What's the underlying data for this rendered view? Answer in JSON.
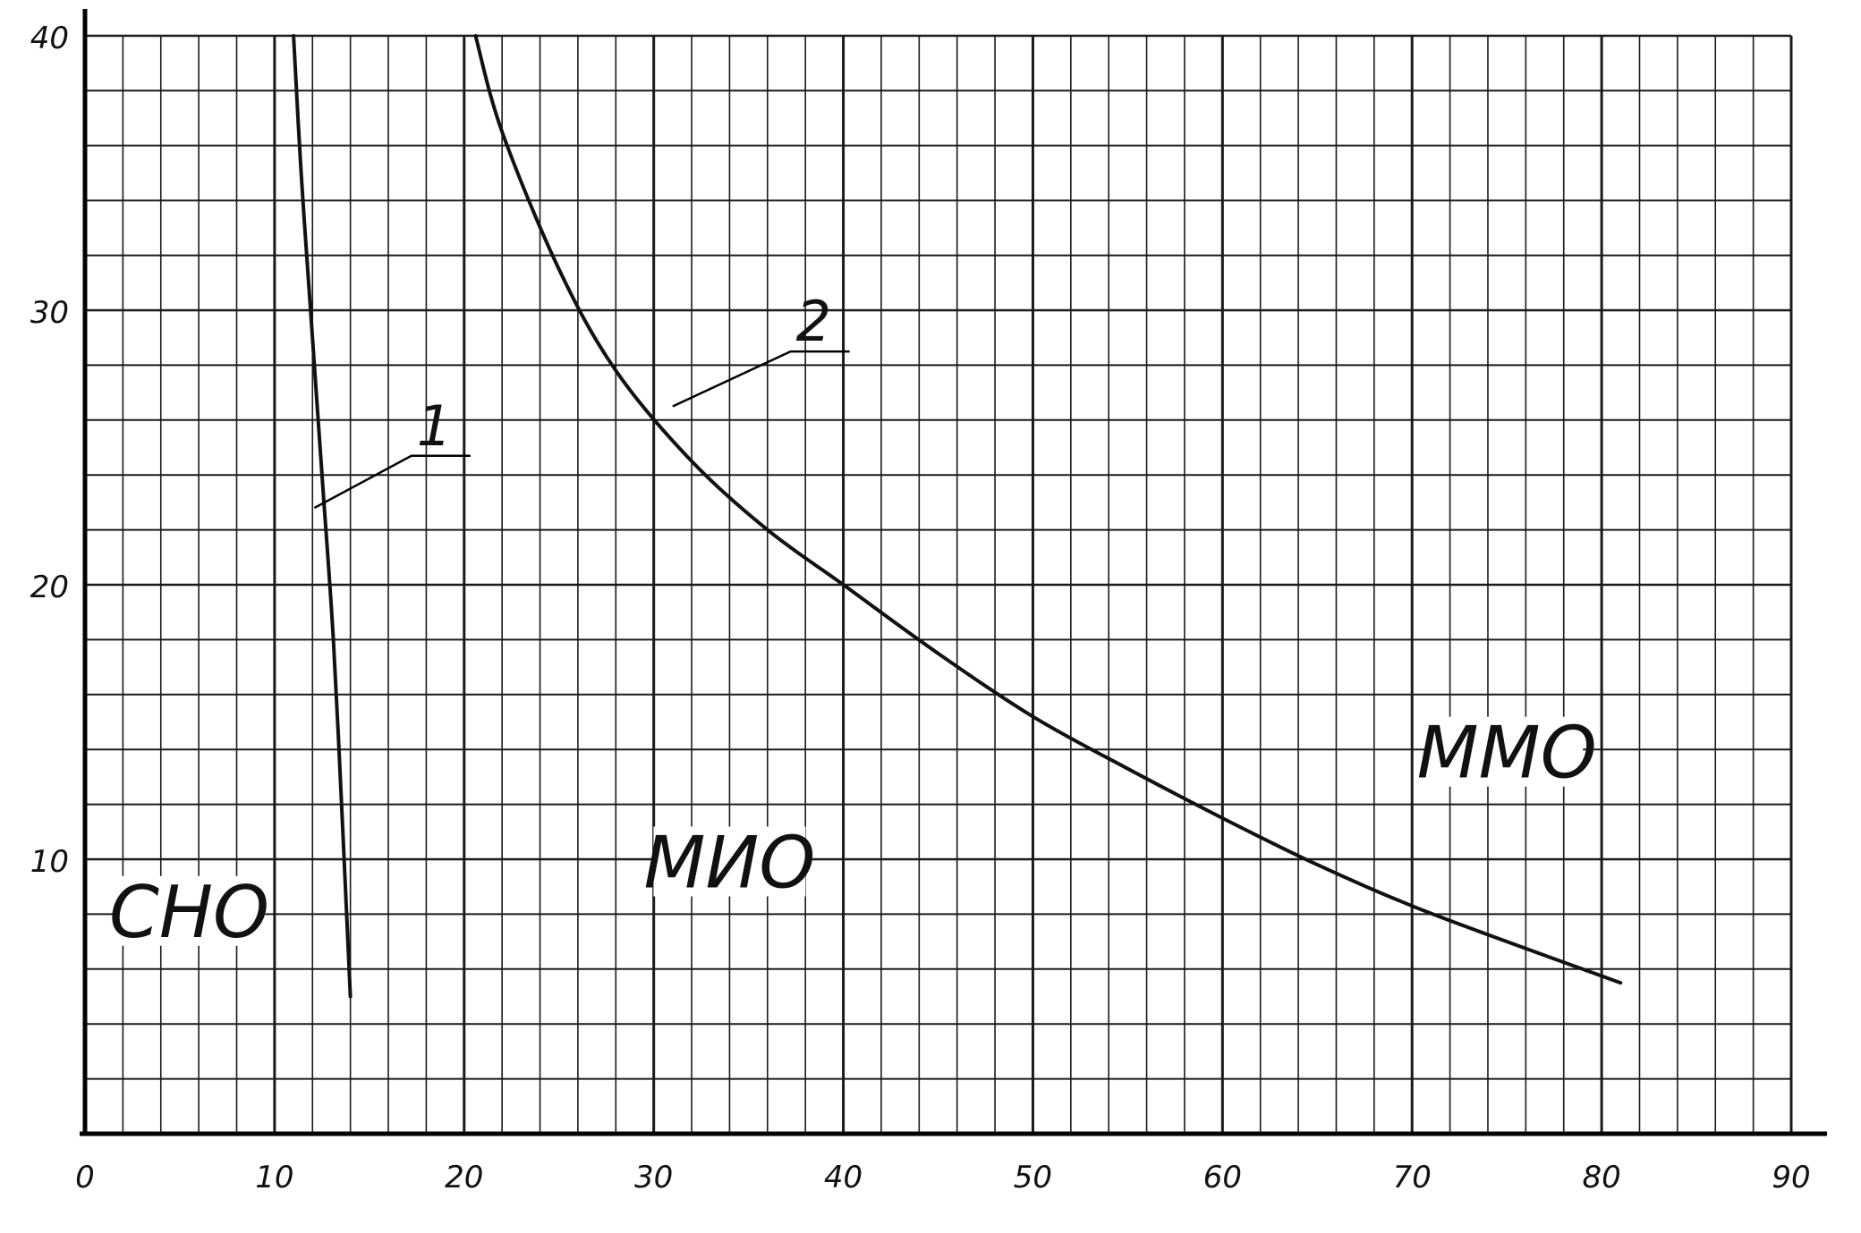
{
  "page_note": "",
  "chart_data": {
    "type": "line",
    "title": "",
    "xlabel": "",
    "ylabel": "",
    "xlim": [
      0,
      90
    ],
    "ylim": [
      0,
      40
    ],
    "x_ticks": [
      0,
      10,
      20,
      30,
      40,
      50,
      60,
      70,
      80,
      90
    ],
    "y_ticks": [
      10,
      20,
      30,
      40
    ],
    "grid": true,
    "series": [
      {
        "name": "1",
        "x": [
          11.0,
          11.4,
          11.9,
          12.5,
          13.1,
          13.6,
          14.0
        ],
        "y": [
          40,
          35,
          30,
          24,
          18,
          11,
          5
        ]
      },
      {
        "name": "2",
        "x": [
          20.6,
          22,
          25,
          28,
          32,
          36,
          40,
          45,
          50,
          55,
          60,
          65,
          70,
          75,
          81
        ],
        "y": [
          40,
          36.5,
          31.5,
          27.8,
          24.5,
          22,
          20,
          17.5,
          15.2,
          13.3,
          11.5,
          9.8,
          8.3,
          7.0,
          5.5
        ]
      }
    ],
    "annotations": [
      {
        "text": "1",
        "x": 17.5,
        "y": 26
      },
      {
        "text": "2",
        "x": 37.5,
        "y": 29.8
      }
    ],
    "regions": [
      {
        "text": "СНО",
        "x": 5.5,
        "y": 7.5
      },
      {
        "text": "МИО",
        "x": 34,
        "y": 9.3
      },
      {
        "text": "ММО",
        "x": 75,
        "y": 13.3
      }
    ],
    "colors": {
      "line": "#111111",
      "grid": "#1a1a1a",
      "background": "#ffffff"
    }
  }
}
